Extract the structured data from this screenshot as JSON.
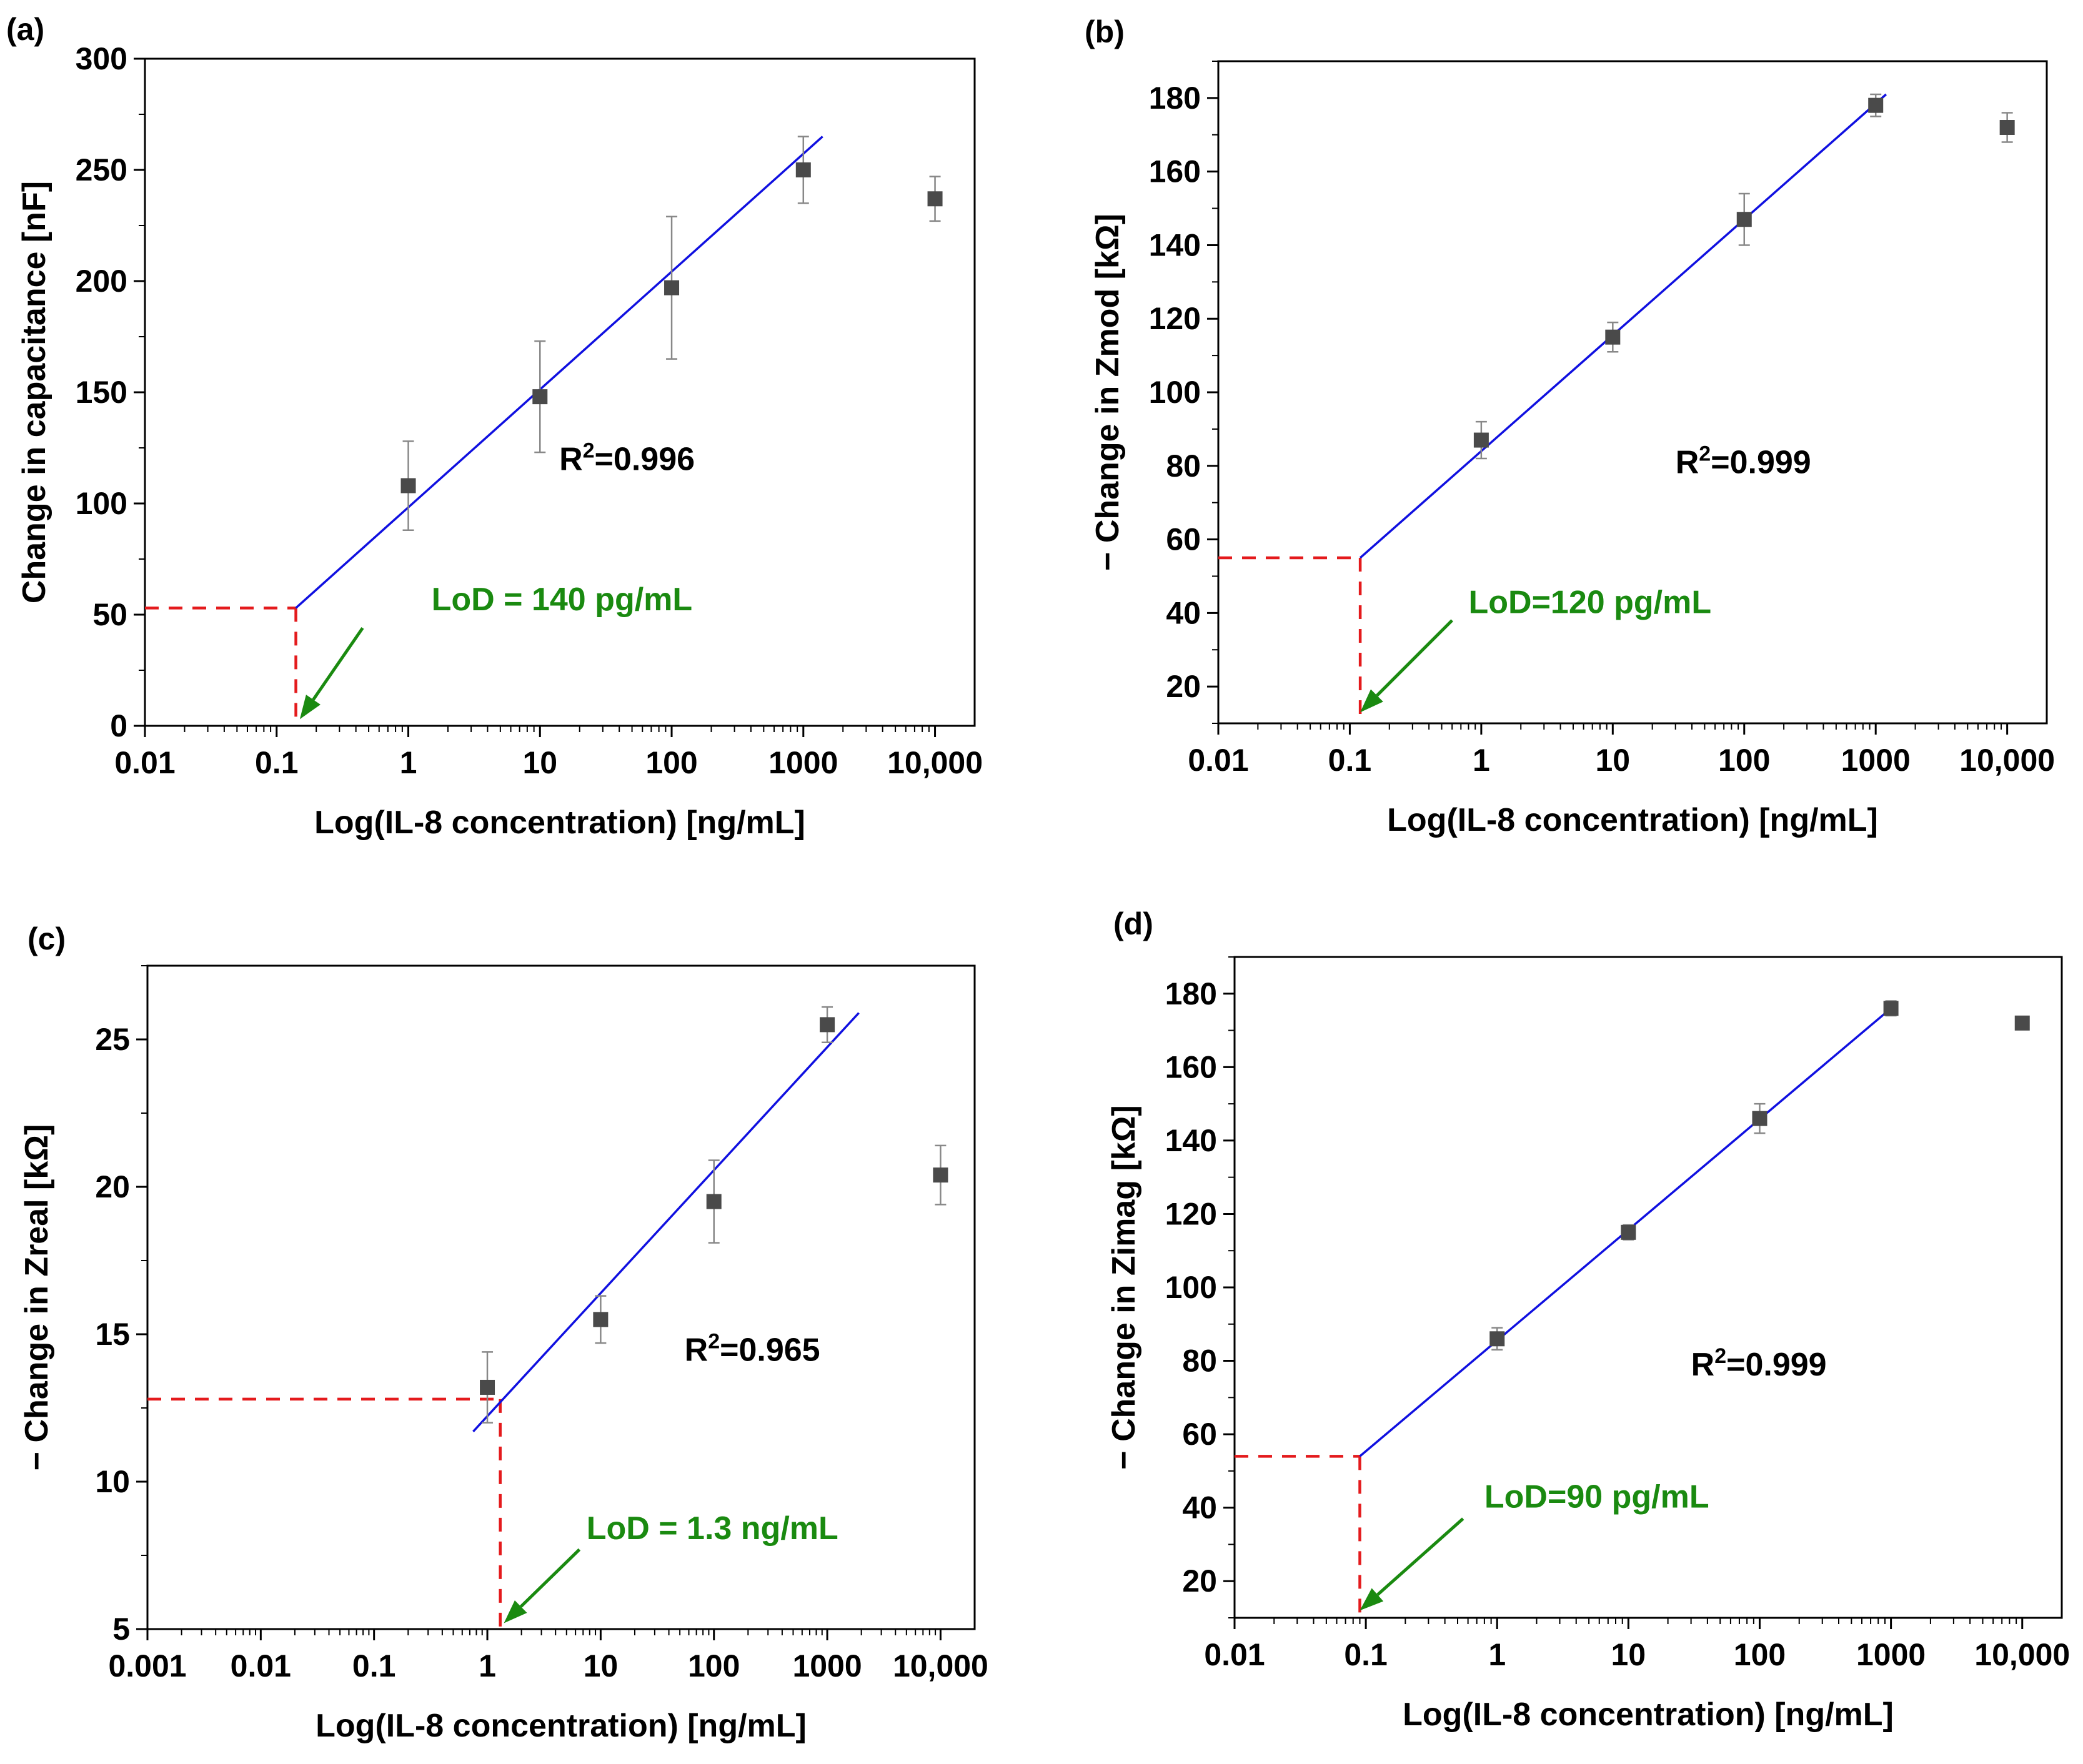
{
  "chart_data": [
    {
      "type": "scatter",
      "panel_label": "(a)",
      "xlabel": "Log(IL-8 concentration) [ng/mL]",
      "ylabel": "Change in capacitance [nF]",
      "x_scale": "log",
      "xlim": [
        0.01,
        20000
      ],
      "ylim": [
        0,
        300
      ],
      "x_ticks": [
        0.01,
        0.1,
        1,
        10,
        100,
        1000,
        10000
      ],
      "x_tick_labels": [
        "0.01",
        "0.1",
        "1",
        "10",
        "100",
        "1000",
        "10,000"
      ],
      "y_ticks": [
        0,
        50,
        100,
        150,
        200,
        250,
        300
      ],
      "y_tick_labels": [
        "0",
        "50",
        "100",
        "150",
        "200",
        "250",
        "300"
      ],
      "points": [
        {
          "x": 1,
          "y": 108,
          "err": 20
        },
        {
          "x": 10,
          "y": 148,
          "err": 25
        },
        {
          "x": 100,
          "y": 197,
          "err": 32
        },
        {
          "x": 1000,
          "y": 250,
          "err": 15
        },
        {
          "x": 10000,
          "y": 237,
          "err": 10
        }
      ],
      "fit": {
        "x": [
          0.14,
          1400
        ],
        "y": [
          53,
          265
        ]
      },
      "lod": {
        "x": 0.14,
        "y": 53,
        "label": "LoD = 140 pg/mL"
      },
      "r2_label": "R",
      "r2_sup": "2",
      "r2_value": "=0.996",
      "annotation_positions": {
        "r2": [
          14,
          115
        ],
        "lod": [
          1.5,
          52
        ]
      },
      "arrow": {
        "from": [
          0.45,
          44
        ],
        "to": [
          0.15,
          3
        ]
      }
    },
    {
      "type": "scatter",
      "panel_label": "(b)",
      "xlabel": "Log(IL-8 concentration) [ng/mL]",
      "ylabel": "− Change in Zmod [kΩ]",
      "x_scale": "log",
      "xlim": [
        0.01,
        20000
      ],
      "ylim": [
        10,
        190
      ],
      "x_ticks": [
        0.01,
        0.1,
        1,
        10,
        100,
        1000,
        10000
      ],
      "x_tick_labels": [
        "0.01",
        "0.1",
        "1",
        "10",
        "100",
        "1000",
        "10,000"
      ],
      "y_ticks": [
        20,
        40,
        60,
        80,
        100,
        120,
        140,
        160,
        180
      ],
      "y_tick_labels": [
        "20",
        "40",
        "60",
        "80",
        "100",
        "120",
        "140",
        "160",
        "180"
      ],
      "points": [
        {
          "x": 1,
          "y": 87,
          "err": 5
        },
        {
          "x": 10,
          "y": 115,
          "err": 4
        },
        {
          "x": 100,
          "y": 147,
          "err": 7
        },
        {
          "x": 1000,
          "y": 178,
          "err": 3
        },
        {
          "x": 10000,
          "y": 172,
          "err": 4
        }
      ],
      "fit": {
        "x": [
          0.12,
          1200
        ],
        "y": [
          55,
          181
        ]
      },
      "lod": {
        "x": 0.12,
        "y": 55,
        "label": "LoD=120 pg/mL"
      },
      "r2_label": "R",
      "r2_sup": "2",
      "r2_value": "=0.999",
      "annotation_positions": {
        "r2": [
          30,
          78
        ],
        "lod": [
          0.8,
          40
        ]
      },
      "arrow": {
        "from": [
          0.6,
          38
        ],
        "to": [
          0.12,
          13
        ]
      }
    },
    {
      "type": "scatter",
      "panel_label": "(c)",
      "xlabel": "Log(IL-8 concentration) [ng/mL]",
      "ylabel": "− Change in Zreal [kΩ]",
      "x_scale": "log",
      "xlim": [
        0.001,
        20000
      ],
      "ylim": [
        5,
        27.5
      ],
      "x_ticks": [
        0.001,
        0.01,
        0.1,
        1,
        10,
        100,
        1000,
        10000
      ],
      "x_tick_labels": [
        "0.001",
        "0.01",
        "0.1",
        "1",
        "10",
        "100",
        "1000",
        "10,000"
      ],
      "y_ticks": [
        5,
        10,
        15,
        20,
        25
      ],
      "y_tick_labels": [
        "5",
        "10",
        "15",
        "20",
        "25"
      ],
      "points": [
        {
          "x": 1,
          "y": 13.2,
          "err": 1.2
        },
        {
          "x": 10,
          "y": 15.5,
          "err": 0.8
        },
        {
          "x": 100,
          "y": 19.5,
          "err": 1.4
        },
        {
          "x": 1000,
          "y": 25.5,
          "err": 0.6
        },
        {
          "x": 10000,
          "y": 20.4,
          "err": 1.0
        }
      ],
      "fit": {
        "x": [
          0.75,
          1900
        ],
        "y": [
          11.7,
          25.9
        ]
      },
      "lod": {
        "x": 1.3,
        "y": 12.8,
        "label": "LoD = 1.3 ng/mL"
      },
      "r2_label": "R",
      "r2_sup": "2",
      "r2_value": "=0.965",
      "annotation_positions": {
        "r2": [
          55,
          14.1
        ],
        "lod": [
          7.5,
          8.05
        ]
      },
      "arrow": {
        "from": [
          6.5,
          7.7
        ],
        "to": [
          1.4,
          5.2
        ]
      }
    },
    {
      "type": "scatter",
      "panel_label": "(d)",
      "xlabel": "Log(IL-8 concentration) [ng/mL]",
      "ylabel": "− Change in Zimag [kΩ]",
      "x_scale": "log",
      "xlim": [
        0.01,
        20000
      ],
      "ylim": [
        10,
        190
      ],
      "x_ticks": [
        0.01,
        0.1,
        1,
        10,
        100,
        1000,
        10000
      ],
      "x_tick_labels": [
        "0.01",
        "0.1",
        "1",
        "10",
        "100",
        "1000",
        "10,000"
      ],
      "y_ticks": [
        20,
        40,
        60,
        80,
        100,
        120,
        140,
        160,
        180
      ],
      "y_tick_labels": [
        "20",
        "40",
        "60",
        "80",
        "100",
        "120",
        "140",
        "160",
        "180"
      ],
      "points": [
        {
          "x": 1,
          "y": 86,
          "err": 3
        },
        {
          "x": 10,
          "y": 115,
          "err": 2
        },
        {
          "x": 100,
          "y": 146,
          "err": 4
        },
        {
          "x": 1000,
          "y": 176,
          "err": 2
        },
        {
          "x": 10000,
          "y": 172,
          "err": 0
        }
      ],
      "fit": {
        "x": [
          0.09,
          1000
        ],
        "y": [
          54,
          176
        ]
      },
      "lod": {
        "x": 0.09,
        "y": 54,
        "label": "LoD=90 pg/mL"
      },
      "r2_label": "R",
      "r2_sup": "2",
      "r2_value": "=0.999",
      "annotation_positions": {
        "r2": [
          30,
          76
        ],
        "lod": [
          0.8,
          40
        ]
      },
      "arrow": {
        "from": [
          0.55,
          37
        ],
        "to": [
          0.09,
          12
        ]
      }
    }
  ]
}
